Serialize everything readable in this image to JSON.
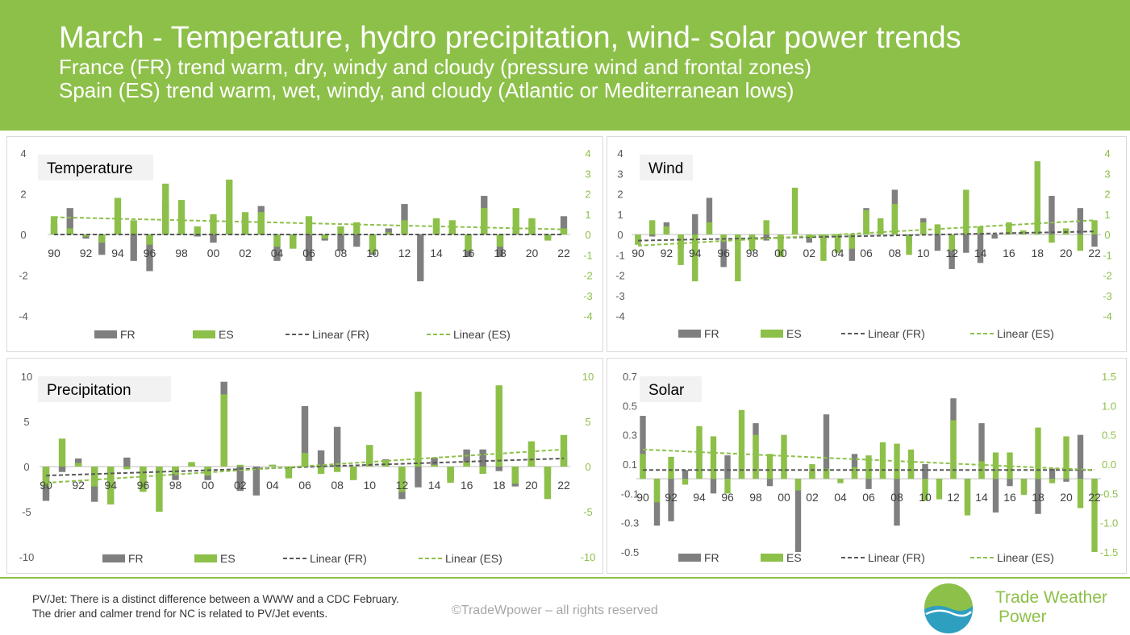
{
  "header": {
    "title": "March - Temperature, hydro precipitation, wind- solar power trends",
    "line2": "France (FR) trend warm, dry, windy and cloudy (pressure wind and frontal zones)",
    "line3": "Spain (ES) trend warm, wet, windy, and cloudy (Atlantic or Mediterranean lows)"
  },
  "footer": {
    "note_label": "PV/Jet:",
    "note_text": " There is a distinct difference between a WWW and a CDC February.",
    "note_line2": "The drier and calmer trend for NC is related to PV/Jet events.",
    "copyright": "©TradeWpower – all rights reserved",
    "brand_line1": "Trade Weather",
    "brand_line2": "Power"
  },
  "colors": {
    "fr": "#7f7f7f",
    "es": "#8dc049",
    "header_bg": "#8dc049",
    "axis_right": "#8dc049"
  },
  "chart_data": [
    {
      "type": "bar",
      "title": "Temperature",
      "x_tick_labels": [
        "90",
        "92",
        "94",
        "96",
        "98",
        "00",
        "02",
        "04",
        "06",
        "08",
        "10",
        "12",
        "14",
        "16",
        "18",
        "20",
        "22"
      ],
      "categories": [
        1990,
        1991,
        1992,
        1993,
        1994,
        1995,
        1996,
        1997,
        1998,
        1999,
        2000,
        2001,
        2002,
        2003,
        2004,
        2005,
        2006,
        2007,
        2008,
        2009,
        2010,
        2011,
        2012,
        2013,
        2014,
        2015,
        2016,
        2017,
        2018,
        2019,
        2020,
        2021,
        2022
      ],
      "series": [
        {
          "name": "FR",
          "axis": "left",
          "values": [
            0.5,
            1.3,
            -0.2,
            -1.0,
            0.1,
            -1.3,
            -1.8,
            1.6,
            0.6,
            -0.1,
            -0.4,
            0.5,
            0.8,
            1.4,
            -1.3,
            -0.6,
            -1.3,
            -0.3,
            -0.8,
            -0.6,
            -1.0,
            0.3,
            1.5,
            -2.3,
            0.7,
            0.3,
            -1.1,
            1.9,
            -1.1,
            0.3,
            0.7,
            -0.2,
            0.9
          ]
        },
        {
          "name": "ES",
          "axis": "right",
          "values": [
            0.9,
            0.3,
            -0.1,
            -0.4,
            1.8,
            0.7,
            -0.5,
            2.5,
            1.7,
            0.4,
            1.0,
            2.7,
            1.1,
            1.1,
            -0.6,
            -0.7,
            0.9,
            -0.2,
            0.4,
            0.6,
            -0.9,
            0.1,
            0.7,
            0.0,
            0.8,
            0.7,
            -0.8,
            1.3,
            -0.6,
            1.3,
            0.8,
            -0.3,
            0.3
          ]
        },
        {
          "name": "Linear (FR)",
          "type": "trend",
          "axis": "left",
          "start": 0.0,
          "end": 0.0
        },
        {
          "name": "Linear (ES)",
          "type": "trend",
          "axis": "right",
          "start": 0.85,
          "end": 0.25
        }
      ],
      "left_ticks": [
        "4",
        "2",
        "0",
        "-2",
        "-4"
      ],
      "right_ticks": [
        "4",
        "3",
        "2",
        "1",
        "0",
        "-1",
        "-2",
        "-3",
        "-4"
      ],
      "ylim_left": [
        -4,
        4
      ],
      "ylim_right": [
        -4,
        4
      ],
      "legend": [
        "FR",
        "ES",
        "Linear (FR)",
        "Linear (ES)"
      ]
    },
    {
      "type": "bar",
      "title": "Wind",
      "x_tick_labels": [
        "90",
        "92",
        "94",
        "96",
        "98",
        "00",
        "02",
        "04",
        "06",
        "08",
        "10",
        "12",
        "14",
        "16",
        "18",
        "20",
        "22"
      ],
      "categories": [
        1990,
        1991,
        1992,
        1993,
        1994,
        1995,
        1996,
        1997,
        1998,
        1999,
        2000,
        2001,
        2002,
        2003,
        2004,
        2005,
        2006,
        2007,
        2008,
        2009,
        2010,
        2011,
        2012,
        2013,
        2014,
        2015,
        2016,
        2017,
        2018,
        2019,
        2020,
        2021,
        2022
      ],
      "series": [
        {
          "name": "FR",
          "axis": "left",
          "values": [
            -0.5,
            -0.1,
            0.6,
            -0.7,
            1.0,
            1.8,
            -1.6,
            -0.4,
            -0.6,
            -0.3,
            -0.4,
            0.1,
            -0.4,
            -0.4,
            -0.6,
            -1.3,
            1.3,
            0.5,
            2.2,
            -0.5,
            0.8,
            -0.8,
            -1.7,
            -0.9,
            -1.4,
            -0.2,
            0.2,
            0.2,
            1.2,
            1.9,
            0.2,
            1.3,
            -0.6
          ]
        },
        {
          "name": "ES",
          "axis": "right",
          "values": [
            -0.5,
            0.7,
            0.4,
            -1.5,
            -2.3,
            0.6,
            -0.3,
            -2.3,
            -0.8,
            0.7,
            -1.1,
            2.3,
            -0.2,
            -1.3,
            -0.9,
            -0.7,
            1.2,
            0.8,
            1.5,
            -1.0,
            0.6,
            0.5,
            -0.8,
            2.2,
            0.4,
            0.0,
            0.6,
            0.2,
            3.6,
            -0.4,
            0.3,
            -0.8,
            0.7
          ]
        },
        {
          "name": "Linear (FR)",
          "type": "trend",
          "axis": "left",
          "start": -0.3,
          "end": 0.15
        },
        {
          "name": "Linear (ES)",
          "type": "trend",
          "axis": "right",
          "start": -0.55,
          "end": 0.7
        }
      ],
      "left_ticks": [
        "4",
        "3",
        "2",
        "1",
        "0",
        "-1",
        "-2",
        "-3",
        "-4"
      ],
      "right_ticks": [
        "4",
        "3",
        "2",
        "1",
        "0",
        "-1",
        "-2",
        "-3",
        "-4"
      ],
      "ylim_left": [
        -4,
        4
      ],
      "ylim_right": [
        -4,
        4
      ],
      "legend": [
        "FR",
        "ES",
        "Linear (FR)",
        "Linear (ES)"
      ]
    },
    {
      "type": "bar",
      "title": "Precipitation",
      "x_tick_labels": [
        "90",
        "92",
        "94",
        "96",
        "98",
        "00",
        "02",
        "04",
        "06",
        "08",
        "10",
        "12",
        "14",
        "16",
        "18",
        "20",
        "22"
      ],
      "categories": [
        1990,
        1991,
        1992,
        1993,
        1994,
        1995,
        1996,
        1997,
        1998,
        1999,
        2000,
        2001,
        2002,
        2003,
        2004,
        2005,
        2006,
        2007,
        2008,
        2009,
        2010,
        2011,
        2012,
        2013,
        2014,
        2015,
        2016,
        2017,
        2018,
        2019,
        2020,
        2021,
        2022
      ],
      "series": [
        {
          "name": "FR",
          "axis": "left",
          "values": [
            -3.8,
            -0.6,
            0.9,
            -3.9,
            -2.4,
            1.0,
            -2.2,
            -1.5,
            -1.5,
            0.3,
            -1.5,
            9.4,
            -2.7,
            -3.2,
            0.2,
            -0.5,
            6.7,
            1.8,
            4.4,
            -1.2,
            0.8,
            0.8,
            -3.6,
            -2.3,
            1.0,
            -1.5,
            1.9,
            1.9,
            -0.5,
            -2.2,
            1.1,
            -0.9,
            1.8
          ]
        },
        {
          "name": "ES",
          "axis": "right",
          "values": [
            -2.2,
            3.1,
            0.4,
            -2.2,
            -4.2,
            -0.3,
            -2.8,
            -5.0,
            -0.8,
            0.5,
            -1.0,
            8.0,
            0.2,
            0.0,
            0.2,
            -1.3,
            1.5,
            -0.8,
            -0.6,
            -1.5,
            2.4,
            0.7,
            -2.8,
            8.3,
            0.2,
            -1.8,
            0.5,
            -0.8,
            9.0,
            -1.9,
            2.8,
            -3.6,
            3.5
          ]
        },
        {
          "name": "Linear (FR)",
          "type": "trend",
          "axis": "left",
          "start": -1.0,
          "end": 0.9
        },
        {
          "name": "Linear (ES)",
          "type": "trend",
          "axis": "right",
          "start": -1.8,
          "end": 1.9
        }
      ],
      "left_ticks": [
        "10",
        "5",
        "0",
        "-5",
        "-10"
      ],
      "right_ticks": [
        "10",
        "5",
        "0",
        "-5",
        "-10"
      ],
      "ylim_left": [
        -10,
        10
      ],
      "ylim_right": [
        -10,
        10
      ],
      "legend": [
        "FR",
        "ES",
        "Linear (FR)",
        "Linear (ES)"
      ]
    },
    {
      "type": "bar",
      "title": "Solar",
      "x_tick_labels": [
        "90",
        "92",
        "94",
        "96",
        "98",
        "00",
        "02",
        "04",
        "06",
        "08",
        "10",
        "12",
        "14",
        "16",
        "18",
        "20",
        "22"
      ],
      "categories": [
        1990,
        1991,
        1992,
        1993,
        1994,
        1995,
        1996,
        1997,
        1998,
        1999,
        2000,
        2001,
        2002,
        2003,
        2004,
        2005,
        2006,
        2007,
        2008,
        2009,
        2010,
        2011,
        2012,
        2013,
        2014,
        2015,
        2016,
        2017,
        2018,
        2019,
        2020,
        2021,
        2022
      ],
      "series": [
        {
          "name": "FR",
          "axis": "left",
          "values": [
            0.43,
            -0.32,
            -0.29,
            0.06,
            0.27,
            -0.1,
            0.16,
            0.15,
            0.38,
            -0.05,
            0.2,
            -0.5,
            0.05,
            0.44,
            0.0,
            0.17,
            -0.07,
            0.05,
            -0.32,
            0.08,
            0.1,
            -0.01,
            0.55,
            -0.22,
            0.38,
            -0.23,
            -0.05,
            -0.1,
            -0.24,
            0.07,
            -0.02,
            0.3,
            -0.12
          ]
        },
        {
          "name": "ES",
          "axis": "left",
          "values": [
            0.17,
            -0.16,
            0.15,
            -0.04,
            0.36,
            0.29,
            -0.1,
            0.47,
            0.3,
            0.17,
            0.3,
            -0.08,
            0.1,
            0.07,
            -0.03,
            0.08,
            0.16,
            0.25,
            0.24,
            0.2,
            -0.15,
            -0.14,
            0.4,
            -0.25,
            0.12,
            0.18,
            0.18,
            -0.11,
            0.35,
            -0.03,
            0.29,
            -0.2,
            -0.5
          ]
        },
        {
          "name": "Linear (FR)",
          "type": "trend",
          "axis": "left",
          "start": 0.06,
          "end": 0.06
        },
        {
          "name": "Linear (ES)",
          "type": "trend",
          "axis": "left",
          "start": 0.2,
          "end": 0.06
        }
      ],
      "left_ticks": [
        "0.7",
        "0.5",
        "0.3",
        "0.1",
        "-0.1",
        "-0.3",
        "-0.5"
      ],
      "right_ticks": [
        "1.5",
        "1.0",
        "0.5",
        "0.0",
        "-0.5",
        "-1.0",
        "-1.5"
      ],
      "ylim_left": [
        -0.5,
        0.7
      ],
      "ylim_right": [
        -1.5,
        1.5
      ],
      "legend": [
        "FR",
        "ES",
        "Linear (FR)",
        "Linear (ES)"
      ]
    }
  ]
}
